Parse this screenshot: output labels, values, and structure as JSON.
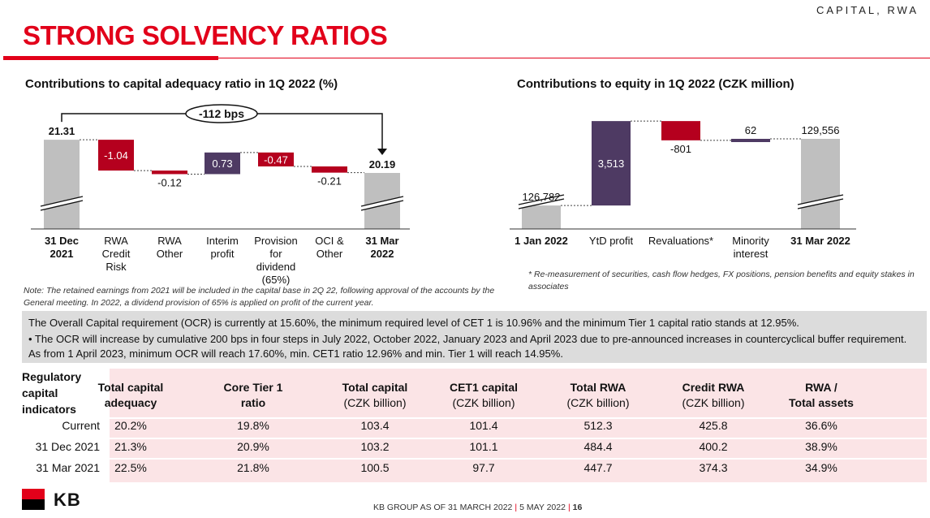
{
  "header": {
    "section_tag": "CAPITAL, RWA",
    "title": "STRONG SOLVENCY RATIOS"
  },
  "colors": {
    "accent_red": "#e2001a",
    "dark_red": "#b5001e",
    "purple": "#4e3a63",
    "bar_grey": "#bfbfbf"
  },
  "left_chart": {
    "title": "Contributions to capital adequacy ratio in 1Q 2022 (%)",
    "badge": "-112 bps",
    "note": "Note: The retained earnings from 2021 will be included in the capital base in 2Q 22, following approval of the accounts by the General meeting.  In 2022, a dividend provision of 65% is applied on profit of the current year."
  },
  "right_chart": {
    "title": "Contributions to equity in 1Q 2022 (CZK million)",
    "note": "* Re-measurement of securities, cash flow hedges, FX positions, pension benefits and equity stakes in associates"
  },
  "chart_data": [
    {
      "type": "bar",
      "subtype": "waterfall",
      "title": "Contributions to capital adequacy ratio in 1Q 2022 (%)",
      "categories": [
        [
          "31 Dec",
          "2021"
        ],
        [
          "RWA",
          "Credit",
          "Risk"
        ],
        [
          "RWA",
          "Other"
        ],
        [
          "Interim",
          "profit"
        ],
        [
          "Provision",
          "for",
          "dividend",
          "(65%)"
        ],
        [
          "OCI &",
          "Other"
        ],
        [
          "31 Mar",
          "2022"
        ]
      ],
      "values": [
        21.31,
        -1.04,
        -0.12,
        0.73,
        -0.47,
        -0.21,
        20.19
      ],
      "labels": [
        "21.31",
        "-1.04",
        "-0.12",
        "0.73",
        "-0.47",
        "-0.21",
        "20.19"
      ],
      "kinds": [
        "total",
        "neg",
        "neg",
        "pos",
        "neg",
        "neg",
        "total"
      ],
      "bold_categories": [
        0,
        6
      ],
      "axis_break": true
    },
    {
      "type": "bar",
      "subtype": "waterfall",
      "title": "Contributions to equity in 1Q 2022 (CZK million)",
      "categories": [
        [
          "1 Jan   2022"
        ],
        [
          "YtD profit"
        ],
        [
          "Revaluations*"
        ],
        [
          "Minority",
          "interest"
        ],
        [
          "31 Mar 2022"
        ]
      ],
      "values": [
        126782,
        3513,
        -801,
        62,
        129556
      ],
      "labels": [
        "126,782",
        "3,513",
        "-801",
        "62",
        "129,556"
      ],
      "kinds": [
        "total",
        "pos",
        "neg",
        "pos",
        "total"
      ],
      "bold_categories": [
        0,
        4
      ],
      "axis_break": true
    }
  ],
  "info_box": {
    "line1": "The Overall Capital requirement (OCR) is currently at 15.60%, the minimum required level of CET 1 is 10.96% and the minimum Tier 1 capital ratio stands at 12.95%.",
    "line2": "• The OCR will increase by cumulative 200 bps in four steps in July 2022, October 2022, January 2023 and April 2023 due to pre-announced increases in countercyclical buffer requirement. As from 1 April 2023, minimum OCR will reach 17.60%, min. CET1 ratio 12.96% and min. Tier 1 will reach 14.95%."
  },
  "table": {
    "row_header_title": [
      "Regulatory",
      "capital",
      "indicators"
    ],
    "columns": [
      {
        "title": "Total capital",
        "title2": "adequacy",
        "sub": ""
      },
      {
        "title": "Core Tier 1",
        "title2": "ratio",
        "sub": ""
      },
      {
        "title": "Total capital",
        "title2": "",
        "sub": "(CZK billion)"
      },
      {
        "title": "CET1 capital",
        "title2": "",
        "sub": "(CZK billion)"
      },
      {
        "title": "Total RWA",
        "title2": "",
        "sub": "(CZK billion)"
      },
      {
        "title": "Credit RWA",
        "title2": "",
        "sub": "(CZK billion)"
      },
      {
        "title": "RWA /",
        "title2": "Total assets",
        "sub": ""
      }
    ],
    "rows": [
      {
        "label": "Current",
        "values": [
          "20.2%",
          "19.8%",
          "103.4",
          "101.4",
          "512.3",
          "425.8",
          "36.6%"
        ]
      },
      {
        "label": "31 Dec 2021",
        "values": [
          "21.3%",
          "20.9%",
          "103.2",
          "101.1",
          "484.4",
          "400.2",
          "38.9%"
        ]
      },
      {
        "label": "31 Mar 2021",
        "values": [
          "22.5%",
          "21.8%",
          "100.5",
          "97.7",
          "447.7",
          "374.3",
          "34.9%"
        ]
      }
    ]
  },
  "footer": {
    "logo_text": "KB",
    "part1": "KB GROUP AS OF 31 MARCH 2022",
    "part2": "5 MAY 2022",
    "page": "16"
  }
}
